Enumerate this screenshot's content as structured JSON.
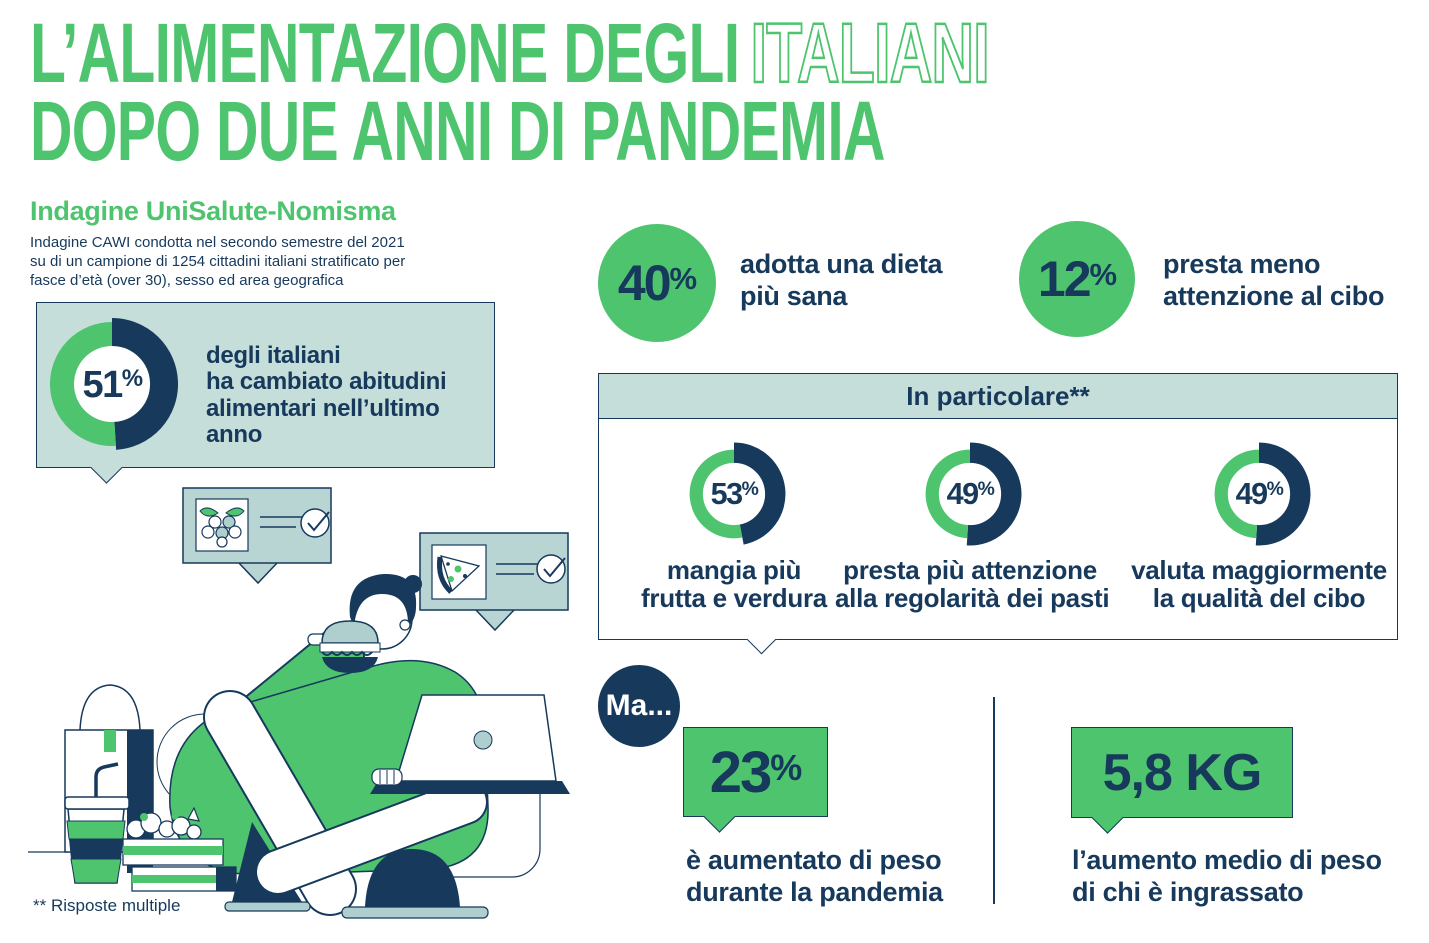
{
  "palette": {
    "green": "#4FC46F",
    "navy": "#16395C",
    "teal_light": "#C6DEDA",
    "teal_bubble": "#B9D5D3",
    "teal_mid": "#AFCFCE",
    "white": "#FFFFFF"
  },
  "title": {
    "line1_solid": "L’ALIMENTAZIONE DEGLI",
    "line1_outline": "ITALIANI",
    "line2": "DOPO DUE ANNI DI PANDEMIA"
  },
  "subtitle": "Indagine UniSalute-Nomisma",
  "methodology": {
    "lines": [
      "Indagine CAWI condotta nel secondo semestre del 2021",
      "su di un campione di 1254 cittadini italiani stratificato per",
      "fasce d’età (over 30), sesso ed area geografica"
    ]
  },
  "group_box": {
    "title": "In particolare**"
  },
  "ma_label": "Ma...",
  "footnote": "** Risposte multiple",
  "icons": [
    "raspberry-icon",
    "pizza-slice-icon",
    "checkmark-icon",
    "burger-icon",
    "laptop-icon",
    "takeaway-bag-icon",
    "drink-cup-icon",
    "vegetable-crate-icon"
  ],
  "chart_data": {
    "type": "pie",
    "title": "L’alimentazione degli italiani dopo due anni di pandemia",
    "subtitle": "Indagine UniSalute-Nomisma",
    "legend_position": "none",
    "stats": [
      {
        "id": "changed_habits",
        "value": 51,
        "unit": "%",
        "style": "donut",
        "label_lines": [
          "degli italiani",
          "ha cambiato abitudini",
          "alimentari nell’ultimo anno"
        ]
      },
      {
        "id": "healthier_diet",
        "value": 40,
        "unit": "%",
        "style": "filled_circle",
        "label_lines": [
          "adotta una dieta",
          "più sana"
        ]
      },
      {
        "id": "less_attention",
        "value": 12,
        "unit": "%",
        "style": "filled_circle",
        "label_lines": [
          "presta meno",
          "attenzione al cibo"
        ]
      },
      {
        "id": "more_fruit_veg",
        "value": 53,
        "unit": "%",
        "style": "donut",
        "group": "In particolare**",
        "label_lines": [
          "mangia più",
          "frutta e verdura"
        ]
      },
      {
        "id": "meal_regularity",
        "value": 49,
        "unit": "%",
        "style": "donut",
        "group": "In particolare**",
        "label_lines": [
          "presta più attenzione",
          "alla regolarità dei pasti"
        ]
      },
      {
        "id": "food_quality",
        "value": 49,
        "unit": "%",
        "style": "donut",
        "group": "In particolare**",
        "label_lines": [
          "valuta maggiormente",
          "la qualità del cibo"
        ]
      },
      {
        "id": "gained_weight",
        "value": 23,
        "unit": "%",
        "style": "speech_bubble",
        "label_lines": [
          "è aumentato di peso",
          "durante la pandemia"
        ]
      },
      {
        "id": "avg_weight_gain",
        "value": 5.8,
        "unit": "kg",
        "display": "5,8 KG",
        "style": "speech_bubble",
        "label_lines": [
          "l’aumento medio di peso",
          "di chi è ingrassato"
        ]
      }
    ]
  }
}
